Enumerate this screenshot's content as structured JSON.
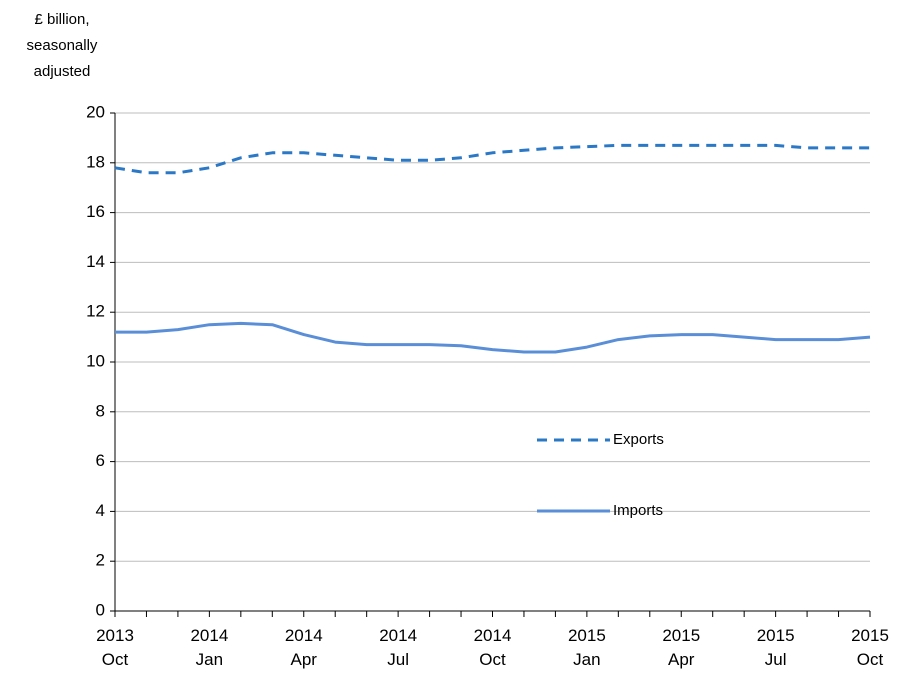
{
  "chart_data": {
    "type": "line",
    "ylabel": [
      "£ billion,",
      "seasonally",
      "adjusted"
    ],
    "categories": [
      "2013 Oct",
      null,
      null,
      "2014 Jan",
      null,
      null,
      "2014 Apr",
      null,
      null,
      "2014 Jul",
      null,
      null,
      "2014 Oct",
      null,
      null,
      "2015 Jan",
      null,
      null,
      "2015 Apr",
      null,
      null,
      "2015 Jul",
      null,
      null,
      "2015 Oct"
    ],
    "series": [
      {
        "name": "Exports",
        "color": "#2a78c6",
        "dashed": true,
        "values": [
          17.8,
          17.6,
          17.6,
          17.8,
          18.2,
          18.4,
          18.4,
          18.3,
          18.2,
          18.1,
          18.1,
          18.2,
          18.4,
          18.5,
          18.6,
          18.65,
          18.7,
          18.7,
          18.7,
          18.7,
          18.7,
          18.7,
          18.6,
          18.6,
          18.6
        ]
      },
      {
        "name": "Imports",
        "color": "#5a8fd8",
        "dashed": false,
        "values": [
          11.2,
          11.2,
          11.3,
          11.5,
          11.55,
          11.5,
          11.1,
          10.8,
          10.7,
          10.7,
          10.7,
          10.65,
          10.5,
          10.4,
          10.4,
          10.6,
          10.9,
          11.05,
          11.1,
          11.1,
          11.0,
          10.9,
          10.9,
          10.9,
          11.0
        ]
      }
    ],
    "ylim": [
      0,
      20
    ],
    "yticks": [
      0,
      2,
      4,
      6,
      8,
      10,
      12,
      14,
      16,
      18,
      20
    ],
    "grid": true
  }
}
